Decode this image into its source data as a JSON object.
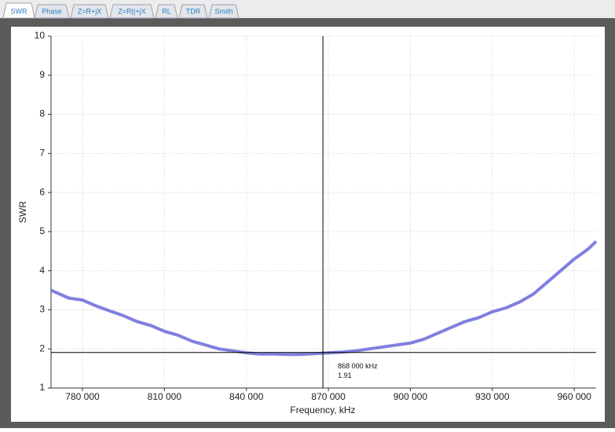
{
  "tabs": [
    "SWR",
    "Phase",
    "Z=R+jX",
    "Z=R||+jX",
    "RL",
    "TDR",
    "Smith"
  ],
  "chart_data": {
    "type": "line",
    "x_label": "Frequency, kHz",
    "y_label": "SWR",
    "color": "#7272dc",
    "x": [
      768500,
      775000,
      780000,
      785000,
      790000,
      795000,
      800000,
      805000,
      810000,
      815000,
      820000,
      825000,
      830000,
      835000,
      840000,
      845000,
      850000,
      855000,
      860000,
      865000,
      870000,
      875000,
      880000,
      885000,
      890000,
      895000,
      900000,
      905000,
      910000,
      915000,
      920000,
      925000,
      930000,
      935000,
      940000,
      945000,
      950000,
      955000,
      960000,
      965000,
      968000
    ],
    "values": [
      3.5,
      3.3,
      3.25,
      3.1,
      2.97,
      2.85,
      2.7,
      2.6,
      2.45,
      2.35,
      2.2,
      2.1,
      2.0,
      1.95,
      1.9,
      1.87,
      1.87,
      1.86,
      1.86,
      1.88,
      1.9,
      1.92,
      1.95,
      2.0,
      2.05,
      2.1,
      2.15,
      2.25,
      2.4,
      2.55,
      2.7,
      2.8,
      2.95,
      3.05,
      3.2,
      3.4,
      3.7,
      4.0,
      4.3,
      4.55,
      4.75
    ],
    "xlim": [
      768500,
      968000
    ],
    "ylim": [
      1,
      10
    ],
    "xticks": [
      {
        "value": 780000,
        "label": "780 000"
      },
      {
        "value": 810000,
        "label": "810 000"
      },
      {
        "value": 840000,
        "label": "840 000"
      },
      {
        "value": 870000,
        "label": "870 000"
      },
      {
        "value": 900000,
        "label": "900 000"
      },
      {
        "value": 930000,
        "label": "930 000"
      },
      {
        "value": 960000,
        "label": "960 000"
      }
    ],
    "yticks": [
      1,
      2,
      3,
      4,
      5,
      6,
      7,
      8,
      9,
      10
    ],
    "grid": true,
    "cursor": {
      "x": 868000,
      "y": 1.91,
      "x_label": "868 000 kHz",
      "y_label": "1.91"
    }
  }
}
